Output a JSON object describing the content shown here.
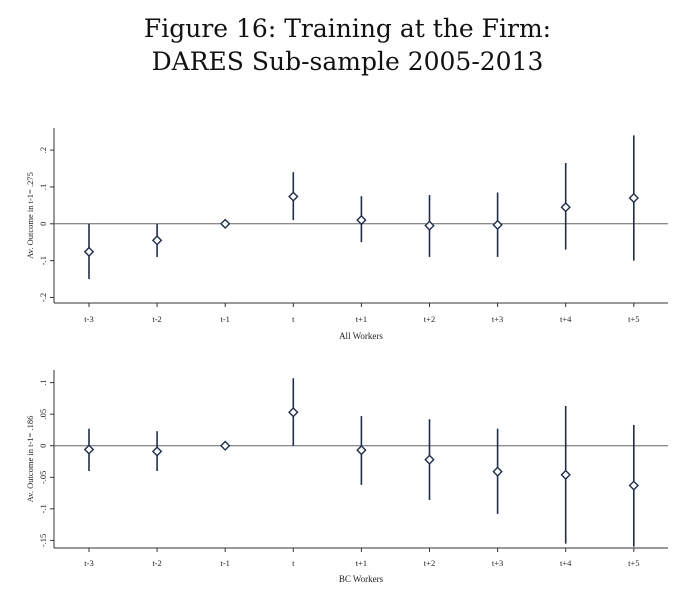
{
  "figure": {
    "title_line1": "Figure 16: Training at the Firm:",
    "title_line2": "DARES Sub-sample 2005-2013"
  },
  "colors": {
    "series": "#1f2d4d",
    "axis": "#333333",
    "zero_line": "#666666"
  },
  "chart_data": [
    {
      "type": "scatter",
      "xlabel": "All Workers",
      "ylabel": "Av. Outcome in t-1= .275",
      "categories": [
        "t-3",
        "t-2",
        "t-1",
        "t",
        "t+1",
        "t+2",
        "t+3",
        "t+4",
        "t+5"
      ],
      "yticks": [
        -0.2,
        -0.1,
        0,
        0.1,
        0.2
      ],
      "ytick_labels": [
        "-.2",
        "-.1",
        "0",
        ".1",
        ".2"
      ],
      "ylim": [
        -0.215,
        0.26
      ],
      "reference_line": 0,
      "series": [
        {
          "values": [
            -0.076,
            -0.045,
            0.0,
            0.074,
            0.01,
            -0.005,
            -0.003,
            0.045,
            0.07
          ],
          "ci_low": [
            -0.15,
            -0.09,
            0.0,
            0.01,
            -0.05,
            -0.09,
            -0.09,
            -0.07,
            -0.1
          ],
          "ci_high": [
            0.0,
            0.0,
            0.0,
            0.14,
            0.075,
            0.078,
            0.085,
            0.165,
            0.24
          ]
        }
      ]
    },
    {
      "type": "scatter",
      "xlabel": "BC Workers",
      "ylabel": "Av. Outcome in t-1= .186",
      "categories": [
        "t-3",
        "t-2",
        "t-1",
        "t",
        "t+1",
        "t+2",
        "t+3",
        "t+4",
        "t+5"
      ],
      "yticks": [
        -0.15,
        -0.1,
        -0.05,
        0,
        0.05,
        0.1
      ],
      "ytick_labels": [
        "-.15",
        "-.1",
        "-.05",
        "0",
        ".05",
        ".1"
      ],
      "ylim": [
        -0.162,
        0.12
      ],
      "reference_line": 0,
      "series": [
        {
          "values": [
            -0.006,
            -0.009,
            0.0,
            0.053,
            -0.007,
            -0.022,
            -0.041,
            -0.046,
            -0.063
          ],
          "ci_low": [
            -0.04,
            -0.04,
            0.0,
            0.0,
            -0.062,
            -0.086,
            -0.108,
            -0.155,
            -0.16
          ],
          "ci_high": [
            0.027,
            0.023,
            0.0,
            0.107,
            0.047,
            0.042,
            0.027,
            0.063,
            0.033
          ]
        }
      ]
    }
  ]
}
